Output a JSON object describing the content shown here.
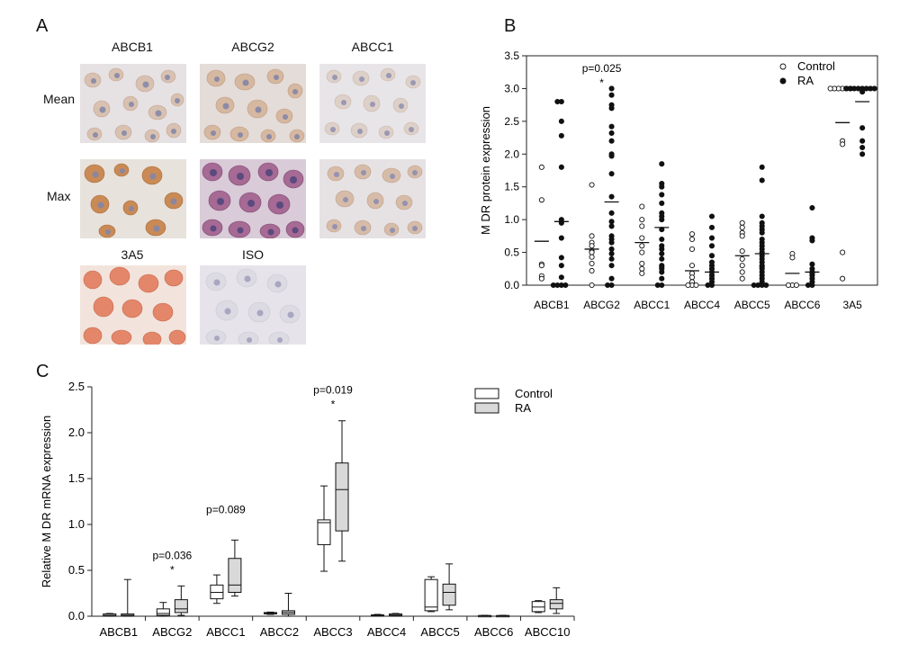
{
  "panels": {
    "a": "A",
    "b": "B",
    "c": "C"
  },
  "panel_a": {
    "column_labels": [
      "ABCB1",
      "ABCG2",
      "ABCC1"
    ],
    "row_labels": [
      "Mean",
      "Max"
    ],
    "bottom_labels": [
      "3A5",
      "ISO"
    ]
  },
  "chart_data": [
    {
      "type": "scatter",
      "ylabel": "M DR protein expression",
      "ylim": [
        0,
        3.5
      ],
      "yticks": [
        "0.0",
        "0.5",
        "1.0",
        "1.5",
        "2.0",
        "2.5",
        "3.0",
        "3.5"
      ],
      "categories": [
        "ABCB1",
        "ABCG2",
        "ABCC1",
        "ABCC4",
        "ABCC5",
        "ABCC6",
        "3A5"
      ],
      "legend": [
        "Control",
        "RA"
      ],
      "annotation": {
        "text": "p=0.025",
        "star": "*",
        "category": "ABCG2"
      },
      "series": [
        {
          "name": "Control",
          "fill": "#ffffff",
          "values": [
            [
              1.8,
              1.3,
              0.32,
              0.3,
              0.14,
              0.1
            ],
            [
              1.53,
              0.75,
              0.65,
              0.6,
              0.52,
              0.5,
              0.43,
              0.33,
              0.22,
              0.0
            ],
            [
              1.2,
              1.0,
              0.9,
              0.72,
              0.6,
              0.5,
              0.33,
              0.25,
              0.18
            ],
            [
              0.78,
              0.7,
              0.55,
              0.3,
              0.18,
              0.12,
              0.05,
              0.0,
              0.0,
              0.0
            ],
            [
              0.95,
              0.88,
              0.8,
              0.75,
              0.52,
              0.4,
              0.3,
              0.2,
              0.1
            ],
            [
              0.48,
              0.42,
              0.0,
              0.0,
              0.0
            ],
            [
              3.0,
              3.0,
              3.0,
              3.0,
              3.0,
              3.0,
              2.2,
              2.15,
              0.5,
              0.1
            ]
          ],
          "means": [
            0.67,
            0.55,
            0.65,
            0.22,
            0.45,
            0.18,
            2.48
          ]
        },
        {
          "name": "RA",
          "fill": "#111111",
          "values": [
            [
              2.8,
              2.8,
              2.5,
              2.28,
              1.8,
              1.0,
              0.95,
              0.72,
              0.42,
              0.3,
              0.12,
              0.0,
              0.0,
              0.0,
              0.0
            ],
            [
              3.0,
              2.9,
              2.75,
              2.7,
              2.42,
              2.32,
              2.2,
              2.0,
              1.97,
              1.7,
              1.35,
              1.1,
              0.97,
              0.9,
              0.75,
              0.7,
              0.65,
              0.55,
              0.48,
              0.4,
              0.3,
              0.1,
              0.0,
              0.0
            ],
            [
              1.85,
              1.55,
              1.5,
              1.38,
              1.25,
              1.1,
              1.05,
              1.0,
              0.85,
              0.7,
              0.6,
              0.55,
              0.48,
              0.4,
              0.3,
              0.28,
              0.25,
              0.2,
              0.1,
              0.0,
              0.0
            ],
            [
              1.05,
              0.88,
              0.72,
              0.6,
              0.45,
              0.35,
              0.3,
              0.25,
              0.2,
              0.15,
              0.1,
              0.05,
              0.0,
              0.0
            ],
            [
              1.8,
              1.6,
              1.05,
              0.95,
              0.9,
              0.85,
              0.8,
              0.7,
              0.65,
              0.6,
              0.55,
              0.5,
              0.45,
              0.4,
              0.35,
              0.3,
              0.28,
              0.25,
              0.2,
              0.15,
              0.1,
              0.05,
              0.0,
              0.0,
              0.0,
              0.0
            ],
            [
              1.18,
              0.72,
              0.68,
              0.32,
              0.25,
              0.2,
              0.18,
              0.15,
              0.1,
              0.05,
              0.0,
              0.0
            ],
            [
              3.0,
              3.0,
              3.0,
              3.0,
              3.0,
              3.0,
              3.0,
              3.0,
              2.95,
              2.4,
              2.2,
              2.1,
              2.0
            ]
          ],
          "means": [
            0.97,
            1.27,
            0.88,
            0.2,
            0.48,
            0.2,
            2.8
          ]
        }
      ]
    },
    {
      "type": "box",
      "ylabel": "Relative M DR mRNA expression",
      "ylim": [
        0,
        2.5
      ],
      "yticks": [
        "0.0",
        "0.5",
        "1.0",
        "1.5",
        "2.0",
        "2.5"
      ],
      "categories": [
        "ABCB1",
        "ABCG2",
        "ABCC1",
        "ABCC2",
        "ABCC3",
        "ABCC4",
        "ABCC5",
        "ABCC6",
        "ABCC10"
      ],
      "legend": [
        "Control",
        "RA"
      ],
      "annotations": [
        {
          "text": "p=0.036",
          "star": "*",
          "category": "ABCG2"
        },
        {
          "text": "p=0.089",
          "star": "",
          "category": "ABCC1"
        },
        {
          "text": "p=0.019",
          "star": "*",
          "category": "ABCC3"
        }
      ],
      "series": [
        {
          "name": "Control",
          "fill": "#ffffff",
          "boxes": [
            [
              0.0,
              0.005,
              0.01,
              0.025,
              0.03
            ],
            [
              0.0,
              0.01,
              0.03,
              0.08,
              0.15
            ],
            [
              0.14,
              0.19,
              0.26,
              0.34,
              0.45
            ],
            [
              0.02,
              0.03,
              0.035,
              0.04,
              0.045
            ],
            [
              0.49,
              0.78,
              1.02,
              1.05,
              1.42
            ],
            [
              0.0,
              0.005,
              0.01,
              0.015,
              0.02
            ],
            [
              0.05,
              0.06,
              0.1,
              0.4,
              0.43
            ],
            [
              0.0,
              0.003,
              0.005,
              0.008,
              0.01
            ],
            [
              0.04,
              0.05,
              0.1,
              0.16,
              0.17
            ]
          ]
        },
        {
          "name": "RA",
          "fill": "#d9d9d9",
          "boxes": [
            [
              0.0,
              0.005,
              0.01,
              0.025,
              0.4
            ],
            [
              0.01,
              0.04,
              0.08,
              0.18,
              0.33
            ],
            [
              0.22,
              0.26,
              0.34,
              0.63,
              0.83
            ],
            [
              0.0,
              0.02,
              0.04,
              0.06,
              0.25
            ],
            [
              0.6,
              0.93,
              1.38,
              1.67,
              2.13
            ],
            [
              0.0,
              0.005,
              0.012,
              0.025,
              0.03
            ],
            [
              0.07,
              0.12,
              0.26,
              0.35,
              0.57
            ],
            [
              0.0,
              0.003,
              0.005,
              0.008,
              0.01
            ],
            [
              0.03,
              0.08,
              0.14,
              0.18,
              0.31
            ]
          ]
        }
      ]
    }
  ]
}
